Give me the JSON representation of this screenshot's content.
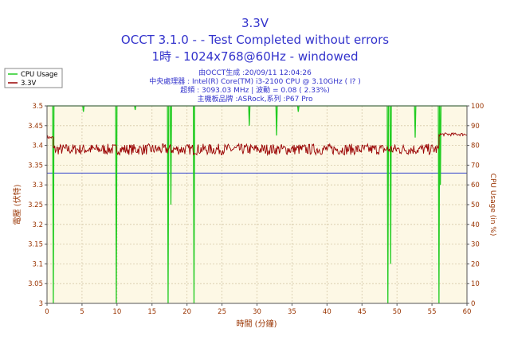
{
  "chart_data": {
    "type": "line",
    "title": "3.3V",
    "subtitle_lines": [
      "OCCT 3.1.0 -  - Test Completed without errors",
      "1時 - 1024x768@60Hz - windowed"
    ],
    "info_lines": [
      "由OCCT生成 :20/09/11 12:04:26",
      "中央處理器 : Intel(R) Core(TM) i3-2100 CPU @ 3.10GHz (  I? )",
      "超頻 : 3093.03 MHz | 波動 = 0.08 ( 2.33%)",
      "主機板品牌 :ASRock,系列 :P67 Pro"
    ],
    "xlabel": "時間 (分鐘)",
    "ylabel": "電壓 (伏特)",
    "y2label": "CPU Usage (in %)",
    "xlim": [
      0,
      60
    ],
    "ylim": [
      3,
      3.5
    ],
    "y2lim": [
      0,
      100
    ],
    "x_ticks": [
      0,
      5,
      10,
      15,
      20,
      25,
      30,
      35,
      40,
      45,
      50,
      55,
      60
    ],
    "y_ticks": [
      "3",
      "3.05",
      "3.1",
      "3.15",
      "3.2",
      "3.25",
      "3.3",
      "3.35",
      "3.4",
      "3.45",
      "3.5"
    ],
    "y2_ticks": [
      0,
      10,
      20,
      30,
      40,
      50,
      60,
      70,
      80,
      90,
      100
    ],
    "legend_position": "top-left",
    "reference_line": {
      "y": 3.33,
      "color": "#3344cc"
    },
    "series": [
      {
        "name": "CPU Usage",
        "axis": "right",
        "color": "#22cc22",
        "baseline": 100,
        "dips": [
          {
            "x": 0.9,
            "y": 0
          },
          {
            "x": 5.2,
            "y": 97
          },
          {
            "x": 9.9,
            "y": 0
          },
          {
            "x": 12.6,
            "y": 98
          },
          {
            "x": 17.3,
            "y": 0
          },
          {
            "x": 17.7,
            "y": 50
          },
          {
            "x": 21.0,
            "y": 0
          },
          {
            "x": 28.9,
            "y": 90
          },
          {
            "x": 32.8,
            "y": 85
          },
          {
            "x": 35.9,
            "y": 97
          },
          {
            "x": 48.7,
            "y": 0
          },
          {
            "x": 49.1,
            "y": 20
          },
          {
            "x": 52.6,
            "y": 84
          },
          {
            "x": 56.0,
            "y": 0
          },
          {
            "x": 56.2,
            "y": 60
          }
        ]
      },
      {
        "name": "3.3V",
        "axis": "left",
        "color": "#990000",
        "segments": [
          {
            "x_start": 0,
            "x_end": 0.9,
            "level": 3.42,
            "noise": 0.004
          },
          {
            "x_start": 0.9,
            "x_end": 56,
            "level": 3.39,
            "noise": 0.014
          },
          {
            "x_start": 56,
            "x_end": 60,
            "level": 3.428,
            "noise": 0.004
          }
        ]
      }
    ],
    "legend_colors": {
      "cpu": "#22cc22",
      "volt": "#990000"
    },
    "colors": {
      "plot_bg": "#fdf8e5",
      "grid": "#d5c8a8",
      "axis_text": "#993300",
      "title_text": "#3333cc"
    }
  }
}
